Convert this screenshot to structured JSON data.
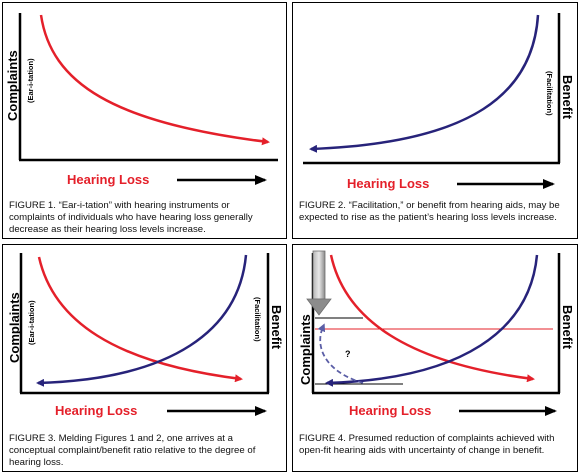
{
  "colors": {
    "red": "#e4202a",
    "blue": "#27237a",
    "axis": "#000000",
    "arrow_gray": "#8c8c8c"
  },
  "figures": [
    {
      "id": "figure-1",
      "ylabel_left": "Complaints",
      "ylabel_left_sub": "(Ear-i-tation)",
      "xlabel": "Hearing Loss",
      "caption": "FIGURE 1. “Ear-i-tation” with hearing instruments or complaints of individuals who have hearing loss generally decrease as their hearing loss levels increase."
    },
    {
      "id": "figure-2",
      "ylabel_right": "Benefit",
      "ylabel_right_sub": "(Facilitation)",
      "xlabel": "Hearing Loss",
      "caption": "FIGURE 2. “Facilitation,” or benefit from hearing aids, may be expected to rise as the patient’s hearing loss levels increase."
    },
    {
      "id": "figure-3",
      "ylabel_left": "Complaints",
      "ylabel_left_sub": "(Ear-i-tation)",
      "ylabel_right": "Benefit",
      "ylabel_right_sub": "(Facilitation)",
      "xlabel": "Hearing Loss",
      "caption": "FIGURE 3. Melding Figures 1 and 2, one arrives at a conceptual complaint/benefit ratio relative to the degree of hearing loss."
    },
    {
      "id": "figure-4",
      "ylabel_left": "Complaints",
      "ylabel_right": "Benefit",
      "xlabel": "Hearing Loss",
      "question_mark": "?",
      "caption": "FIGURE 4. Presumed reduction of complaints achieved with open-fit hearing aids with uncertainty of change in benefit."
    }
  ]
}
